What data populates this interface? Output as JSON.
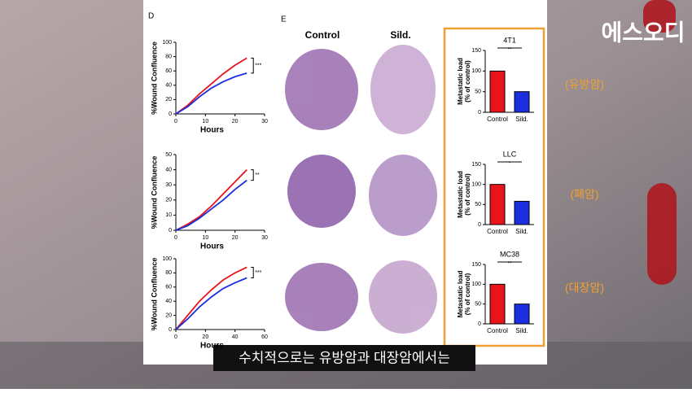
{
  "watermark": "에스오디",
  "subtitle": "수치적으로는 유방암과 대장암에서는",
  "panel_labels": [
    "D",
    "E"
  ],
  "column_headers": [
    "Control",
    "Sild."
  ],
  "side_labels": [
    "(유방암)",
    "(폐암)",
    "(대장암)"
  ],
  "line_charts": [
    {
      "type": "line",
      "ylabel": "%Wound Confluence",
      "xlabel": "Hours",
      "significance": "***",
      "x": [
        0,
        4,
        8,
        12,
        16,
        20,
        24
      ],
      "xlim": [
        0,
        30
      ],
      "xticks": [
        0,
        10,
        20,
        30
      ],
      "ylim": [
        0,
        100
      ],
      "yticks": [
        0,
        20,
        40,
        60,
        80,
        100
      ],
      "series": [
        {
          "color": "#e8131b",
          "values": [
            0,
            12,
            28,
            42,
            56,
            68,
            78
          ]
        },
        {
          "color": "#1c2fe0",
          "values": [
            0,
            10,
            24,
            36,
            45,
            52,
            57
          ]
        }
      ]
    },
    {
      "type": "line",
      "ylabel": "%Wound Confluence",
      "xlabel": "Hours",
      "significance": "**",
      "x": [
        0,
        4,
        8,
        12,
        16,
        20,
        24
      ],
      "xlim": [
        0,
        30
      ],
      "xticks": [
        0,
        10,
        20,
        30
      ],
      "ylim": [
        0,
        50
      ],
      "yticks": [
        0,
        10,
        20,
        30,
        40,
        50
      ],
      "series": [
        {
          "color": "#e8131b",
          "values": [
            0,
            4,
            9,
            16,
            24,
            32,
            40
          ]
        },
        {
          "color": "#1c2fe0",
          "values": [
            0,
            3,
            8,
            14,
            20,
            27,
            33
          ]
        }
      ]
    },
    {
      "type": "line",
      "ylabel": "%Wound Confluence",
      "xlabel": "Hours",
      "significance": "***",
      "x": [
        0,
        8,
        16,
        24,
        32,
        40,
        48
      ],
      "xlim": [
        0,
        60
      ],
      "xticks": [
        0,
        20,
        40,
        60
      ],
      "ylim": [
        0,
        100
      ],
      "yticks": [
        0,
        20,
        40,
        60,
        80,
        100
      ],
      "series": [
        {
          "color": "#e8131b",
          "values": [
            0,
            20,
            40,
            56,
            70,
            80,
            88
          ]
        },
        {
          "color": "#1c2fe0",
          "values": [
            0,
            15,
            32,
            46,
            58,
            66,
            73
          ]
        }
      ]
    }
  ],
  "bar_charts": [
    {
      "type": "bar",
      "title": "4T1",
      "significance": "**",
      "ylabel": [
        "Metastatic load",
        "(% of control)"
      ],
      "categories": [
        "Control",
        "Sild."
      ],
      "values": [
        100,
        50
      ],
      "colors": [
        "#e8131b",
        "#1c2fe0"
      ],
      "ylim": [
        0,
        150
      ],
      "yticks": [
        0,
        50,
        100,
        150
      ]
    },
    {
      "type": "bar",
      "title": "LLC",
      "significance": "*",
      "ylabel": [
        "Metastatic load",
        "(% of control)"
      ],
      "categories": [
        "Control",
        "Sild."
      ],
      "values": [
        100,
        58
      ],
      "colors": [
        "#e8131b",
        "#1c2fe0"
      ],
      "ylim": [
        0,
        150
      ],
      "yticks": [
        0,
        50,
        100,
        150
      ]
    },
    {
      "type": "bar",
      "title": "MC38",
      "significance": "**",
      "ylabel": [
        "Metastatic load",
        "(% of control)"
      ],
      "categories": [
        "Control",
        "Sild."
      ],
      "values": [
        100,
        50
      ],
      "colors": [
        "#e8131b",
        "#1c2fe0"
      ],
      "ylim": [
        0,
        150
      ],
      "yticks": [
        0,
        50,
        100,
        150
      ]
    }
  ]
}
